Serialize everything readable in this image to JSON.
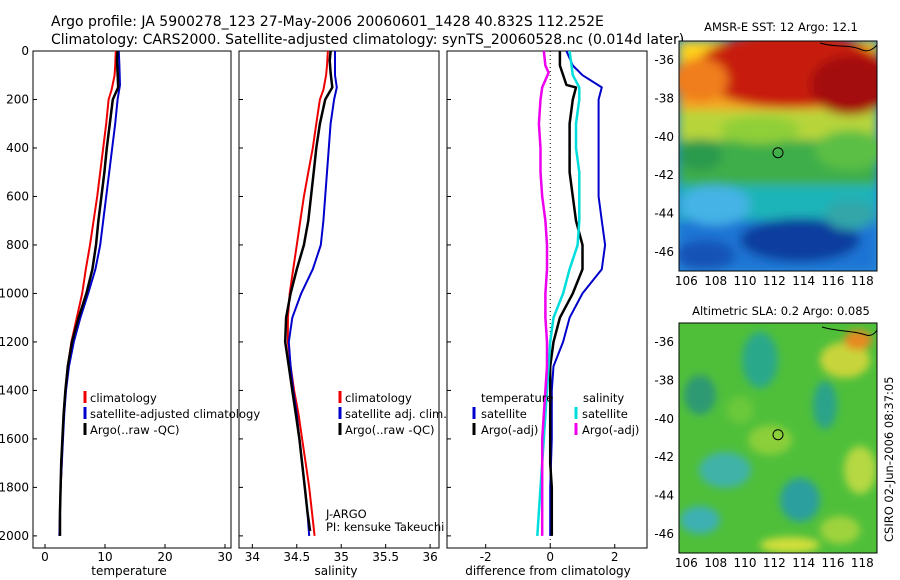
{
  "header": {
    "line1": "Argo profile: JA 5900278_123 27-May-2006 20060601_1428 40.832S 112.252E",
    "line2": "Climatology: CARS2000. Satellite-adjusted climatology: synTS_20060528.nc (0.014d later)"
  },
  "side_label": "CSIRO 02-Jun-2006 08:37:05",
  "credit": {
    "line1": "J-ARGO",
    "line2": "PI: kensuke Takeuchi"
  },
  "colors": {
    "red": "#ee0000",
    "blue": "#0000cc",
    "black": "#000000",
    "cyan": "#00dddd",
    "magenta": "#ee00ee"
  },
  "chart_data": [
    {
      "id": "temperature",
      "type": "line",
      "xlabel": "temperature",
      "ylabel": "",
      "xlim": [
        -2,
        31
      ],
      "ylim": [
        2050,
        0
      ],
      "xticks": [
        0,
        10,
        20,
        30
      ],
      "yticks": [
        0,
        200,
        400,
        600,
        800,
        1000,
        1200,
        1400,
        1600,
        1800,
        2000
      ],
      "legend": [
        "climatology",
        "satellite-adjusted climatology",
        "Argo(..raw -QC)"
      ],
      "series": [
        {
          "name": "climatology",
          "color": "red",
          "points": [
            [
              11.8,
              0
            ],
            [
              11.7,
              60
            ],
            [
              11.6,
              100
            ],
            [
              11.1,
              160
            ],
            [
              10.6,
              200
            ],
            [
              10.2,
              300
            ],
            [
              9.7,
              400
            ],
            [
              9.2,
              500
            ],
            [
              8.7,
              600
            ],
            [
              8.1,
              700
            ],
            [
              7.5,
              800
            ],
            [
              6.8,
              900
            ],
            [
              6.2,
              1000
            ],
            [
              5.3,
              1100
            ],
            [
              4.4,
              1200
            ],
            [
              3.8,
              1300
            ],
            [
              3.4,
              1400
            ],
            [
              3.1,
              1500
            ],
            [
              2.9,
              1600
            ],
            [
              2.8,
              1700
            ],
            [
              2.6,
              1800
            ],
            [
              2.5,
              1900
            ],
            [
              2.4,
              2000
            ]
          ]
        },
        {
          "name": "satellite-adjusted climatology",
          "color": "blue",
          "points": [
            [
              12.3,
              0
            ],
            [
              12.4,
              60
            ],
            [
              12.5,
              140
            ],
            [
              12.1,
              200
            ],
            [
              11.7,
              300
            ],
            [
              11.2,
              400
            ],
            [
              10.7,
              500
            ],
            [
              10.2,
              600
            ],
            [
              9.7,
              700
            ],
            [
              9.2,
              800
            ],
            [
              8.4,
              900
            ],
            [
              7.2,
              1000
            ],
            [
              5.9,
              1100
            ],
            [
              4.8,
              1200
            ],
            [
              4.0,
              1300
            ],
            [
              3.5,
              1400
            ],
            [
              3.2,
              1500
            ],
            [
              3.0,
              1600
            ],
            [
              2.8,
              1700
            ],
            [
              2.6,
              1800
            ],
            [
              2.5,
              1900
            ],
            [
              2.4,
              2000
            ]
          ]
        },
        {
          "name": "Argo(..raw -QC)",
          "color": "black",
          "points": [
            [
              12.1,
              0
            ],
            [
              12.0,
              40
            ],
            [
              12.1,
              90
            ],
            [
              12.2,
              150
            ],
            [
              11.3,
              200
            ],
            [
              10.8,
              300
            ],
            [
              10.3,
              400
            ],
            [
              9.9,
              500
            ],
            [
              9.4,
              600
            ],
            [
              8.9,
              700
            ],
            [
              8.5,
              800
            ],
            [
              7.9,
              900
            ],
            [
              6.9,
              1000
            ],
            [
              5.6,
              1100
            ],
            [
              4.5,
              1200
            ],
            [
              3.8,
              1300
            ],
            [
              3.4,
              1400
            ],
            [
              3.1,
              1500
            ],
            [
              2.9,
              1600
            ],
            [
              2.7,
              1700
            ],
            [
              2.6,
              1800
            ],
            [
              2.5,
              1900
            ],
            [
              2.5,
              2000
            ]
          ]
        }
      ]
    },
    {
      "id": "salinity",
      "type": "line",
      "xlabel": "salinity",
      "ylabel": "",
      "xlim": [
        33.85,
        36.1
      ],
      "ylim": [
        2050,
        0
      ],
      "xticks": [
        34,
        34.5,
        35,
        35.5,
        36
      ],
      "yticks": [],
      "legend": [
        "climatology",
        "satellite adj. clim.",
        "Argo(..raw -QC)"
      ],
      "series": [
        {
          "name": "climatology",
          "color": "red",
          "points": [
            [
              34.85,
              0
            ],
            [
              34.84,
              60
            ],
            [
              34.83,
              100
            ],
            [
              34.8,
              160
            ],
            [
              34.76,
              200
            ],
            [
              34.72,
              300
            ],
            [
              34.68,
              400
            ],
            [
              34.63,
              500
            ],
            [
              34.58,
              600
            ],
            [
              34.54,
              700
            ],
            [
              34.5,
              800
            ],
            [
              34.46,
              900
            ],
            [
              34.42,
              1000
            ],
            [
              34.4,
              1100
            ],
            [
              34.4,
              1200
            ],
            [
              34.43,
              1300
            ],
            [
              34.47,
              1400
            ],
            [
              34.52,
              1500
            ],
            [
              34.56,
              1600
            ],
            [
              34.6,
              1700
            ],
            [
              34.64,
              1800
            ],
            [
              34.67,
              1900
            ],
            [
              34.7,
              2000
            ]
          ]
        },
        {
          "name": "satellite adj. clim.",
          "color": "blue",
          "points": [
            [
              34.93,
              0
            ],
            [
              34.93,
              100
            ],
            [
              34.95,
              150
            ],
            [
              34.92,
              200
            ],
            [
              34.88,
              300
            ],
            [
              34.86,
              400
            ],
            [
              34.84,
              500
            ],
            [
              34.82,
              600
            ],
            [
              34.8,
              700
            ],
            [
              34.77,
              800
            ],
            [
              34.68,
              900
            ],
            [
              34.55,
              1000
            ],
            [
              34.45,
              1100
            ],
            [
              34.41,
              1200
            ],
            [
              34.43,
              1300
            ],
            [
              34.46,
              1400
            ],
            [
              34.5,
              1500
            ],
            [
              34.53,
              1600
            ],
            [
              34.56,
              1700
            ],
            [
              34.59,
              1800
            ],
            [
              34.62,
              1900
            ],
            [
              34.64,
              2000
            ]
          ]
        },
        {
          "name": "Argo(..raw -QC)",
          "color": "black",
          "points": [
            [
              34.88,
              0
            ],
            [
              34.87,
              40
            ],
            [
              34.88,
              90
            ],
            [
              34.9,
              150
            ],
            [
              34.82,
              200
            ],
            [
              34.76,
              300
            ],
            [
              34.72,
              400
            ],
            [
              34.69,
              500
            ],
            [
              34.66,
              600
            ],
            [
              34.63,
              700
            ],
            [
              34.58,
              800
            ],
            [
              34.5,
              900
            ],
            [
              34.43,
              1000
            ],
            [
              34.38,
              1100
            ],
            [
              34.37,
              1200
            ],
            [
              34.41,
              1300
            ],
            [
              34.45,
              1400
            ],
            [
              34.49,
              1500
            ],
            [
              34.53,
              1600
            ],
            [
              34.56,
              1700
            ],
            [
              34.59,
              1800
            ],
            [
              34.62,
              1900
            ],
            [
              34.65,
              1980
            ]
          ]
        }
      ]
    },
    {
      "id": "difference",
      "type": "line",
      "xlabel": "difference from climatology",
      "ylabel": "",
      "xlim": [
        -3.2,
        3.0
      ],
      "ylim": [
        2050,
        0
      ],
      "xticks": [
        -2,
        0,
        2
      ],
      "yticks": [],
      "legend_headers": [
        "temperature",
        "salinity"
      ],
      "legend": [
        "satellite",
        "Argo(-adj)",
        "satellite",
        "Argo(-adj)"
      ],
      "series": [
        {
          "name": "temperature satellite",
          "color": "blue",
          "points": [
            [
              0.5,
              0
            ],
            [
              0.7,
              60
            ],
            [
              1.0,
              100
            ],
            [
              1.6,
              150
            ],
            [
              1.5,
              200
            ],
            [
              1.5,
              300
            ],
            [
              1.5,
              400
            ],
            [
              1.5,
              500
            ],
            [
              1.5,
              600
            ],
            [
              1.6,
              700
            ],
            [
              1.7,
              800
            ],
            [
              1.6,
              900
            ],
            [
              1.0,
              1000
            ],
            [
              0.6,
              1100
            ],
            [
              0.4,
              1200
            ],
            [
              0.1,
              1300
            ],
            [
              0.05,
              1400
            ],
            [
              0.05,
              1600
            ],
            [
              0.0,
              1800
            ],
            [
              0.0,
              2000
            ]
          ]
        },
        {
          "name": "temperature Argo(-adj)",
          "color": "black",
          "points": [
            [
              0.3,
              0
            ],
            [
              0.3,
              60
            ],
            [
              0.5,
              140
            ],
            [
              0.8,
              150
            ],
            [
              0.7,
              200
            ],
            [
              0.6,
              300
            ],
            [
              0.6,
              400
            ],
            [
              0.6,
              500
            ],
            [
              0.7,
              600
            ],
            [
              0.8,
              700
            ],
            [
              1.0,
              800
            ],
            [
              1.0,
              900
            ],
            [
              0.7,
              1000
            ],
            [
              0.3,
              1100
            ],
            [
              0.1,
              1200
            ],
            [
              0.0,
              1300
            ],
            [
              0.0,
              1500
            ],
            [
              0.0,
              1700
            ],
            [
              0.05,
              1800
            ],
            [
              0.05,
              1900
            ],
            [
              0.05,
              2000
            ]
          ]
        },
        {
          "name": "salinity satellite",
          "color": "cyan",
          "points": [
            [
              0.6,
              0
            ],
            [
              0.7,
              100
            ],
            [
              0.9,
              150
            ],
            [
              0.9,
              200
            ],
            [
              0.8,
              300
            ],
            [
              0.8,
              400
            ],
            [
              0.9,
              500
            ],
            [
              0.9,
              600
            ],
            [
              0.9,
              700
            ],
            [
              0.85,
              800
            ],
            [
              0.6,
              900
            ],
            [
              0.4,
              1000
            ],
            [
              0.1,
              1100
            ],
            [
              0.0,
              1200
            ],
            [
              -0.05,
              1300
            ],
            [
              -0.1,
              1400
            ],
            [
              -0.15,
              1500
            ],
            [
              -0.2,
              1600
            ],
            [
              -0.25,
              1700
            ],
            [
              -0.3,
              1800
            ],
            [
              -0.35,
              1900
            ],
            [
              -0.4,
              2000
            ]
          ]
        },
        {
          "name": "salinity Argo(-adj)",
          "color": "magenta",
          "points": [
            [
              -0.2,
              0
            ],
            [
              -0.15,
              60
            ],
            [
              -0.05,
              90
            ],
            [
              -0.25,
              150
            ],
            [
              -0.3,
              200
            ],
            [
              -0.35,
              300
            ],
            [
              -0.3,
              400
            ],
            [
              -0.3,
              500
            ],
            [
              -0.25,
              600
            ],
            [
              -0.15,
              700
            ],
            [
              -0.1,
              800
            ],
            [
              -0.1,
              900
            ],
            [
              -0.15,
              1000
            ],
            [
              -0.15,
              1100
            ],
            [
              -0.1,
              1200
            ],
            [
              -0.1,
              1300
            ],
            [
              -0.15,
              1400
            ],
            [
              -0.2,
              1500
            ],
            [
              -0.25,
              1600
            ],
            [
              -0.25,
              1700
            ],
            [
              -0.25,
              1800
            ],
            [
              -0.25,
              1900
            ],
            [
              -0.25,
              2000
            ]
          ]
        }
      ]
    },
    {
      "id": "sst_map",
      "type": "heatmap",
      "title": "AMSR-E SST: 12 Argo: 12.1",
      "xlim": [
        105.5,
        119
      ],
      "ylim": [
        -47,
        -35
      ],
      "xticks": [
        106,
        108,
        110,
        112,
        114,
        116,
        118
      ],
      "yticks": [
        -36,
        -38,
        -40,
        -42,
        -44,
        -46
      ],
      "marker": [
        112.25,
        -40.83
      ]
    },
    {
      "id": "sla_map",
      "type": "heatmap",
      "title": "Altimetric SLA: 0.2 Argo: 0.085",
      "xlim": [
        105.5,
        119
      ],
      "ylim": [
        -47,
        -35
      ],
      "xticks": [
        106,
        108,
        110,
        112,
        114,
        116,
        118
      ],
      "yticks": [
        -36,
        -38,
        -40,
        -42,
        -44,
        -46
      ],
      "marker": [
        112.25,
        -40.83
      ]
    }
  ]
}
